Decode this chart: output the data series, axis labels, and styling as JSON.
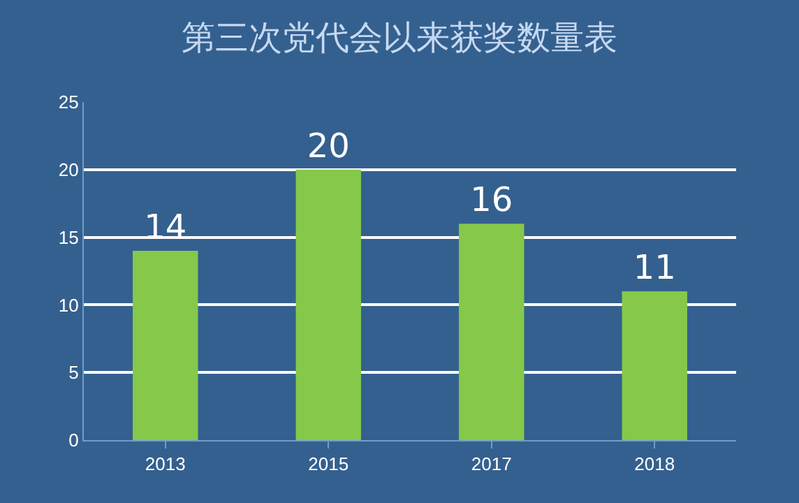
{
  "chart_data": {
    "type": "bar",
    "title": "第三次党代会以来获奖数量表",
    "categories": [
      "2013",
      "2015",
      "2017",
      "2018"
    ],
    "values": [
      14,
      20,
      16,
      11
    ],
    "color": "#86c84a",
    "ylim": [
      0,
      25
    ],
    "yticks": [
      0,
      5,
      10,
      15,
      20,
      25
    ],
    "grid": "y",
    "data_labels": true
  }
}
